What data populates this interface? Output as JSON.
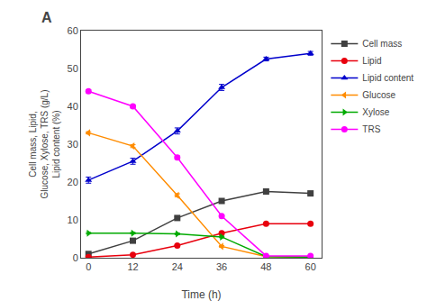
{
  "chart_data": {
    "type": "line",
    "x": [
      0,
      12,
      24,
      36,
      48,
      60
    ],
    "series": [
      {
        "name": "Cell mass",
        "color": "#404040",
        "marker": "square",
        "values": [
          1.0,
          4.5,
          10.5,
          15.0,
          17.5,
          17.0
        ],
        "errors": [
          0.15,
          0.2,
          0.3,
          0.3,
          0.25,
          0.2
        ]
      },
      {
        "name": "Lipid",
        "color": "#e8000d",
        "marker": "circle",
        "values": [
          0.2,
          0.8,
          3.2,
          6.5,
          9.0,
          9.0
        ],
        "errors": [
          0.05,
          0.1,
          0.15,
          0.2,
          0.2,
          0.2
        ]
      },
      {
        "name": "Lipid content",
        "color": "#0000cc",
        "marker": "triangle-up",
        "values": [
          20.5,
          25.5,
          33.5,
          45.0,
          52.5,
          54.0
        ],
        "errors": [
          0.8,
          0.8,
          0.8,
          0.8,
          0.5,
          0.5
        ]
      },
      {
        "name": "Glucose",
        "color": "#ff8c00",
        "marker": "triangle-left",
        "values": [
          33.0,
          29.5,
          16.5,
          3.0,
          0.3,
          0.2
        ],
        "errors": [
          0.3,
          0.4,
          0.4,
          0.2,
          0.1,
          0.05
        ]
      },
      {
        "name": "Xylose",
        "color": "#00aa00",
        "marker": "triangle-right",
        "values": [
          6.5,
          6.5,
          6.3,
          5.5,
          0.3,
          0.2
        ],
        "errors": [
          0.2,
          0.2,
          0.2,
          0.2,
          0.08,
          0.05
        ]
      },
      {
        "name": "TRS",
        "color": "#ff00ff",
        "marker": "circle",
        "values": [
          44.0,
          40.0,
          26.5,
          11.0,
          0.5,
          0.5
        ],
        "errors": [
          0.4,
          0.4,
          0.4,
          0.3,
          0.08,
          0.08
        ]
      }
    ],
    "xlabel": "Time (h)",
    "ylabel": [
      "Cell mass, Lipid,",
      "Glucose, Xylose, TRS (g/L)",
      "Lipid content (%)"
    ],
    "annotations": [
      "A"
    ],
    "xlim": [
      -2,
      63
    ],
    "ylim": [
      0,
      60
    ],
    "xticks": [
      0,
      12,
      24,
      36,
      48,
      60
    ],
    "yticks": [
      0,
      10,
      20,
      30,
      40,
      50,
      60
    ],
    "grid": false,
    "legend": "upper right"
  }
}
